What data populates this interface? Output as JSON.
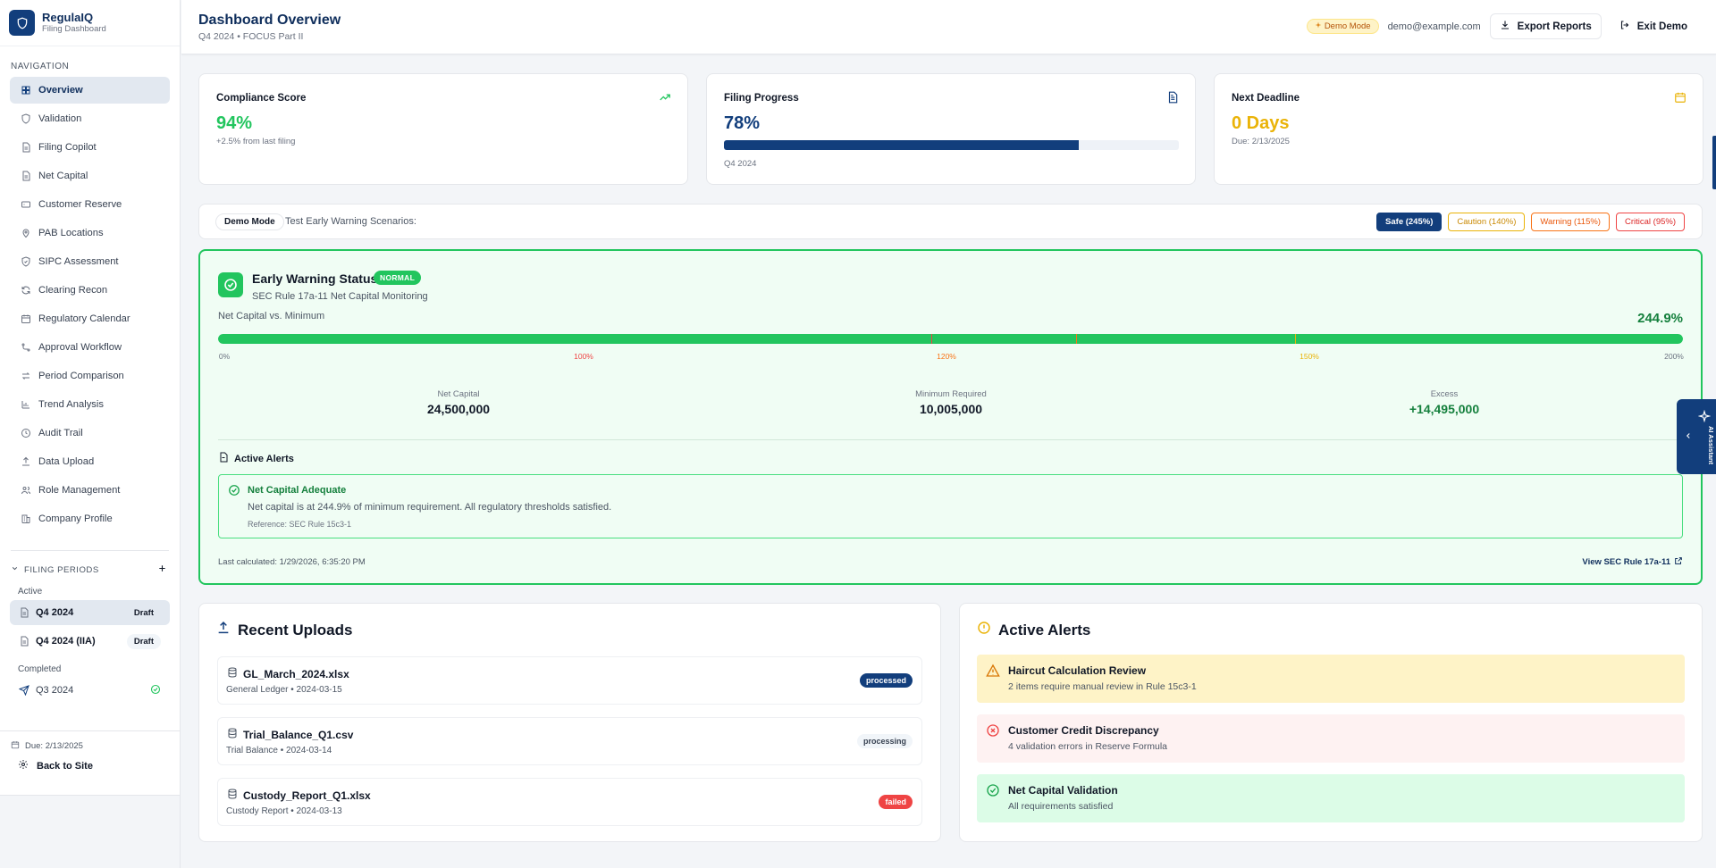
{
  "colors": {
    "brand_navy": "#123e7c",
    "success_green": "#22c55e",
    "warning_amber": "#eab308",
    "danger_red": "#ef4444"
  },
  "brand": {
    "name": "RegulaIQ",
    "subtitle": "Filing Dashboard",
    "icon": "shield-icon"
  },
  "sidebar": {
    "nav_heading": "NAVIGATION",
    "items": [
      {
        "label": "Overview",
        "icon": "grid-icon",
        "active": true
      },
      {
        "label": "Validation",
        "icon": "shield-icon"
      },
      {
        "label": "Filing Copilot",
        "icon": "document-icon"
      },
      {
        "label": "Net Capital",
        "icon": "document-icon"
      },
      {
        "label": "Customer Reserve",
        "icon": "card-icon"
      },
      {
        "label": "PAB Locations",
        "icon": "map-pin-icon"
      },
      {
        "label": "SIPC Assessment",
        "icon": "shield-check-icon"
      },
      {
        "label": "Clearing Recon",
        "icon": "refresh-icon"
      },
      {
        "label": "Regulatory Calendar",
        "icon": "calendar-icon"
      },
      {
        "label": "Approval Workflow",
        "icon": "workflow-icon"
      },
      {
        "label": "Period Comparison",
        "icon": "arrows-icon"
      },
      {
        "label": "Trend Analysis",
        "icon": "bar-chart-icon"
      },
      {
        "label": "Audit Trail",
        "icon": "clock-icon"
      },
      {
        "label": "Data Upload",
        "icon": "upload-icon"
      },
      {
        "label": "Role Management",
        "icon": "users-icon"
      },
      {
        "label": "Company Profile",
        "icon": "building-icon"
      }
    ],
    "filing_periods": {
      "heading": "FILING PERIODS",
      "active_label": "Active",
      "completed_label": "Completed",
      "active": [
        {
          "label": "Q4 2024",
          "badge": "Draft",
          "selected": true
        },
        {
          "label": "Q4 2024 (IIA)",
          "badge": "Draft"
        }
      ],
      "completed": [
        {
          "label": "Q3 2024"
        }
      ]
    },
    "due": "Due: 2/13/2025",
    "back_label": "Back to Site"
  },
  "header": {
    "title": "Dashboard Overview",
    "subtitle": "Q4 2024 • FOCUS Part II",
    "demo_pill": "Demo Mode",
    "email": "demo@example.com",
    "export_label": "Export Reports",
    "exit_label": "Exit Demo"
  },
  "stats": {
    "compliance": {
      "title": "Compliance Score",
      "value": "94%",
      "note": "+2.5% from last filing"
    },
    "filing": {
      "title": "Filing Progress",
      "value": "78%",
      "progress": 0.78,
      "note": "Q4 2024"
    },
    "deadline": {
      "title": "Next Deadline",
      "value": "0 Days",
      "note": "Due: 2/13/2025"
    }
  },
  "demo_bar": {
    "tag": "Demo Mode",
    "text": "Test Early Warning Scenarios:",
    "scenarios": [
      {
        "label": "Safe (245%)",
        "kind": "safe",
        "selected": true
      },
      {
        "label": "Caution (140%)",
        "kind": "caution"
      },
      {
        "label": "Warning (115%)",
        "kind": "warning"
      },
      {
        "label": "Critical (95%)",
        "kind": "critical"
      }
    ]
  },
  "early_warning": {
    "title": "Early Warning Status",
    "badge": "NORMAL",
    "subtitle": "SEC Rule 17a-11 Net Capital Monitoring",
    "bar_label": "Net Capital vs. Minimum",
    "percent": "244.9%",
    "fill_fraction": 1.0,
    "ticks": [
      "0%",
      "100%",
      "120%",
      "150%",
      "200%"
    ],
    "metrics": [
      {
        "label": "Net Capital",
        "value": "24,500,000"
      },
      {
        "label": "Minimum Required",
        "value": "10,005,000"
      },
      {
        "label": "Excess",
        "value": "+14,495,000"
      }
    ],
    "alerts_heading": "Active Alerts",
    "alert": {
      "title": "Net Capital Adequate",
      "body": "Net capital is at 244.9% of minimum requirement. All regulatory thresholds satisfied.",
      "reference": "Reference: SEC Rule 15c3-1"
    },
    "last_calculated": "Last calculated: 1/29/2026, 6:35:20 PM",
    "link_label": "View SEC Rule 17a-11"
  },
  "recent_uploads": {
    "title": "Recent Uploads",
    "items": [
      {
        "name": "GL_March_2024.xlsx",
        "meta": "General Ledger • 2024-03-15",
        "status": "processed"
      },
      {
        "name": "Trial_Balance_Q1.csv",
        "meta": "Trial Balance • 2024-03-14",
        "status": "processing"
      },
      {
        "name": "Custody_Report_Q1.xlsx",
        "meta": "Custody Report • 2024-03-13",
        "status": "failed"
      }
    ]
  },
  "active_alerts": {
    "title": "Active Alerts",
    "items": [
      {
        "title": "Haircut Calculation Review",
        "sub": "2 items require manual review in Rule 15c3-1",
        "kind": "warning"
      },
      {
        "title": "Customer Credit Discrepancy",
        "sub": "4 validation errors in Reserve Formula",
        "kind": "error"
      },
      {
        "title": "Net Capital Validation",
        "sub": "All requirements satisfied",
        "kind": "success"
      }
    ]
  },
  "ai_assistant": {
    "label": "AI Assistant"
  }
}
